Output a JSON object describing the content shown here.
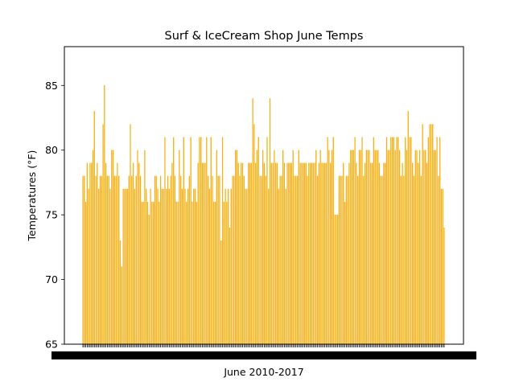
{
  "chart_data": {
    "type": "bar",
    "title": "Surf & IceCream Shop June Temps",
    "xlabel": "June 2010-2017",
    "ylabel": "Temperatures (°F)",
    "ylim": [
      65,
      88
    ],
    "yticks": [
      65,
      70,
      75,
      80,
      85
    ],
    "grid": false,
    "colors": {
      "bar_fill": "#f5b400",
      "bar_edge": "#f5a000",
      "axes": "#000000",
      "background": "#ffffff"
    },
    "values": [
      78,
      78,
      76,
      79,
      77,
      79,
      79,
      80,
      83,
      78,
      79,
      77,
      78,
      78,
      82,
      85,
      79,
      78,
      78,
      77,
      80,
      80,
      78,
      78,
      79,
      78,
      73,
      71,
      77,
      77,
      77,
      77,
      78,
      82,
      78,
      79,
      77,
      78,
      80,
      79,
      78,
      76,
      76,
      80,
      77,
      76,
      75,
      77,
      76,
      76,
      78,
      78,
      77,
      76,
      78,
      77,
      77,
      81,
      77,
      78,
      77,
      78,
      79,
      81,
      78,
      76,
      76,
      80,
      78,
      77,
      81,
      77,
      76,
      77,
      78,
      81,
      76,
      77,
      77,
      76,
      79,
      81,
      81,
      79,
      79,
      79,
      81,
      78,
      77,
      81,
      78,
      76,
      76,
      80,
      78,
      78,
      73,
      81,
      76,
      77,
      76,
      77,
      74,
      77,
      78,
      78,
      80,
      80,
      79,
      78,
      79,
      79,
      78,
      77,
      77,
      79,
      79,
      79,
      84,
      82,
      79,
      80,
      81,
      78,
      78,
      80,
      79,
      78,
      81,
      77,
      84,
      79,
      79,
      80,
      79,
      79,
      77,
      78,
      78,
      80,
      79,
      77,
      79,
      79,
      79,
      79,
      80,
      78,
      78,
      78,
      80,
      79,
      79,
      79,
      79,
      79,
      78,
      79,
      79,
      79,
      79,
      79,
      80,
      78,
      79,
      80,
      79,
      79,
      79,
      79,
      81,
      80,
      79,
      80,
      81,
      75,
      75,
      75,
      78,
      78,
      78,
      79,
      76,
      78,
      78,
      79,
      80,
      80,
      80,
      81,
      79,
      78,
      80,
      80,
      81,
      78,
      79,
      80,
      80,
      80,
      79,
      79,
      81,
      80,
      80,
      80,
      79,
      78,
      78,
      79,
      79,
      81,
      80,
      80,
      81,
      81,
      81,
      80,
      81,
      81,
      80,
      78,
      79,
      78,
      81,
      80,
      83,
      81,
      81,
      79,
      78,
      80,
      80,
      79,
      80,
      78,
      82,
      80,
      80,
      79,
      81,
      82,
      82,
      82,
      80,
      80,
      81,
      78,
      81,
      77,
      77,
      74
    ]
  }
}
